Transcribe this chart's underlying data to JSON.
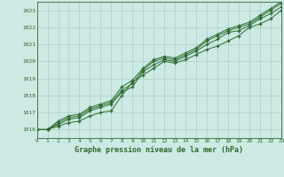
{
  "title": "Graphe pression niveau de la mer (hPa)",
  "bg_color": "#cce9e4",
  "grid_color": "#aacfc8",
  "line_color": "#2d6a2d",
  "marker_color": "#2d6a2d",
  "xmin": 0,
  "xmax": 23,
  "ymin": 1015.5,
  "ymax": 1023.5,
  "yticks": [
    1016,
    1017,
    1018,
    1019,
    1020,
    1021,
    1022,
    1023
  ],
  "xticks": [
    0,
    1,
    2,
    3,
    4,
    5,
    6,
    7,
    8,
    9,
    10,
    11,
    12,
    13,
    14,
    15,
    16,
    17,
    18,
    19,
    20,
    21,
    22,
    23
  ],
  "series": [
    [
      1016.0,
      1016.0,
      1016.2,
      1016.4,
      1016.5,
      1016.8,
      1017.0,
      1017.1,
      1018.0,
      1018.8,
      1019.2,
      1019.6,
      1020.0,
      1019.9,
      1020.1,
      1020.4,
      1020.7,
      1020.9,
      1021.2,
      1021.5,
      1022.0,
      1022.2,
      1022.5,
      1023.0
    ],
    [
      1016.0,
      1016.0,
      1016.3,
      1016.6,
      1016.7,
      1017.1,
      1017.3,
      1017.5,
      1018.2,
      1018.5,
      1019.4,
      1019.8,
      1020.1,
      1020.0,
      1020.3,
      1020.6,
      1021.0,
      1021.3,
      1021.7,
      1021.8,
      1022.1,
      1022.5,
      1022.8,
      1023.2
    ],
    [
      1016.0,
      1016.0,
      1016.4,
      1016.7,
      1016.8,
      1017.2,
      1017.4,
      1017.6,
      1018.3,
      1018.7,
      1019.5,
      1020.0,
      1020.2,
      1020.1,
      1020.4,
      1020.7,
      1021.2,
      1021.5,
      1021.8,
      1022.0,
      1022.2,
      1022.6,
      1023.0,
      1023.4
    ],
    [
      1016.0,
      1016.0,
      1016.5,
      1016.8,
      1016.9,
      1017.3,
      1017.5,
      1017.7,
      1018.5,
      1018.9,
      1019.6,
      1020.1,
      1020.3,
      1020.2,
      1020.5,
      1020.8,
      1021.3,
      1021.6,
      1021.9,
      1022.1,
      1022.3,
      1022.7,
      1023.1,
      1023.5
    ]
  ]
}
